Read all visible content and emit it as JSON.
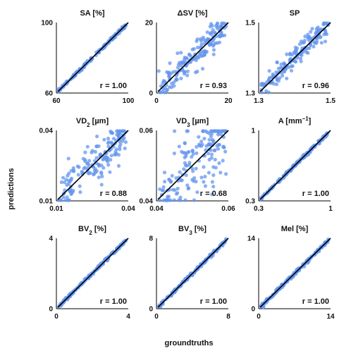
{
  "figure": {
    "xlabel": "groundtruths",
    "ylabel": "predictions",
    "point_color": "#6495ED",
    "line_color": "#000000"
  },
  "chart_data": [
    {
      "type": "scatter",
      "title": "SA [%]",
      "title_main": "SA",
      "title_sub": "",
      "title_unit": " [%]",
      "xlim": [
        60,
        100
      ],
      "ylim": [
        60,
        100
      ],
      "ticks": [
        "60",
        "100"
      ],
      "r_label": "r = 1.00",
      "r": 1.0
    },
    {
      "type": "scatter",
      "title": "ΔSV [%]",
      "title_main": "ΔSV",
      "title_sub": "",
      "title_unit": " [%]",
      "xlim": [
        0,
        20
      ],
      "ylim": [
        0,
        20
      ],
      "ticks": [
        "0",
        "20"
      ],
      "r_label": "r = 0.93",
      "r": 0.93
    },
    {
      "type": "scatter",
      "title": "SP",
      "title_main": "SP",
      "title_sub": "",
      "title_unit": "",
      "xlim": [
        1.3,
        1.5
      ],
      "ylim": [
        1.3,
        1.5
      ],
      "ticks": [
        "1.3",
        "1.5"
      ],
      "r_label": "r = 0.96",
      "r": 0.96
    },
    {
      "type": "scatter",
      "title": "VD2 [µm]",
      "title_main": "VD",
      "title_sub": "2",
      "title_unit": " [µm]",
      "xlim": [
        0.01,
        0.04
      ],
      "ylim": [
        0.01,
        0.04
      ],
      "ticks": [
        "0.01",
        "0.04"
      ],
      "r_label": "r = 0.88",
      "r": 0.88
    },
    {
      "type": "scatter",
      "title": "VD3 [µm]",
      "title_main": "VD",
      "title_sub": "3",
      "title_unit": " [µm]",
      "xlim": [
        0.04,
        0.06
      ],
      "ylim": [
        0.04,
        0.06
      ],
      "ticks": [
        "0.04",
        "0.06"
      ],
      "r_label": "r = 0.68",
      "r": 0.68
    },
    {
      "type": "scatter",
      "title": "A [mm−1]",
      "title_main": "A [mm",
      "title_sup": "−1",
      "title_unit": "]",
      "xlim": [
        0.3,
        1
      ],
      "ylim": [
        0.3,
        1
      ],
      "ticks": [
        "0.3",
        "1"
      ],
      "r_label": "r = 1.00",
      "r": 1.0
    },
    {
      "type": "scatter",
      "title": "BV2 [%]",
      "title_main": "BV",
      "title_sub": "2",
      "title_unit": " [%]",
      "xlim": [
        0,
        4
      ],
      "ylim": [
        0,
        4
      ],
      "ticks": [
        "0",
        "4"
      ],
      "r_label": "r = 1.00",
      "r": 1.0
    },
    {
      "type": "scatter",
      "title": "BV3 [%]",
      "title_main": "BV",
      "title_sub": "3",
      "title_unit": " [%]",
      "xlim": [
        0,
        8
      ],
      "ylim": [
        0,
        8
      ],
      "ticks": [
        "0",
        "8"
      ],
      "r_label": "r = 1.00",
      "r": 1.0
    },
    {
      "type": "scatter",
      "title": "Mel [%]",
      "title_main": "Mel",
      "title_sub": "",
      "title_unit": " [%]",
      "xlim": [
        0,
        14
      ],
      "ylim": [
        0,
        14
      ],
      "ticks": [
        "0",
        "14"
      ],
      "r_label": "r = 1.00",
      "r": 1.0
    }
  ]
}
